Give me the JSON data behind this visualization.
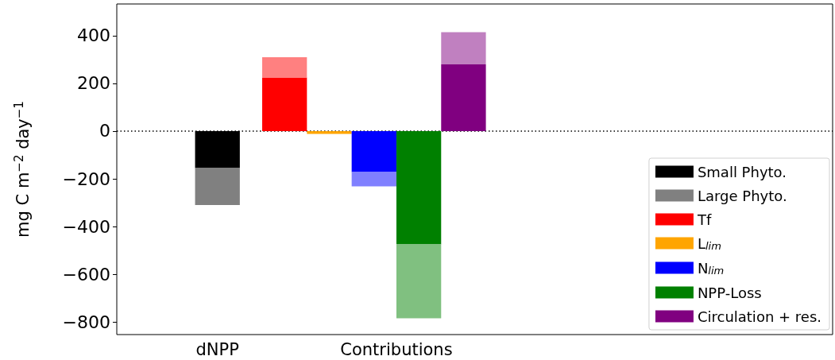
{
  "chart_data": {
    "type": "bar",
    "ylabel": "mg C m$^{−2}$ day$^{−1}$",
    "stacked": true,
    "categories": [
      null,
      null,
      null,
      null,
      "dNPP",
      null,
      null,
      null,
      null,
      null,
      null,
      null,
      "Contributions",
      null,
      null,
      null,
      null,
      null,
      null,
      null,
      null,
      null,
      null,
      null,
      null,
      null,
      null,
      null,
      null,
      null,
      null,
      null
    ],
    "ylim": [
      -853,
      533
    ],
    "yticks": [
      -800,
      -600,
      -400,
      -200,
      0,
      200,
      400
    ],
    "series": [
      {
        "name": "Small Phyto.",
        "color": "#000000",
        "values": [
          null,
          null,
          null,
          null,
          -155,
          null,
          null,
          null,
          null,
          null,
          null,
          null,
          null,
          null,
          null,
          null,
          null,
          null,
          null,
          null,
          null,
          null,
          null,
          null,
          null,
          null,
          null,
          null,
          null,
          null,
          null,
          null
        ]
      },
      {
        "name": "Large Phyto.",
        "color": "#808080",
        "values": [
          null,
          null,
          null,
          null,
          -155,
          null,
          null,
          null,
          null,
          null,
          null,
          null,
          null,
          null,
          null,
          null,
          null,
          null,
          null,
          null,
          null,
          null,
          null,
          null,
          null,
          null,
          null,
          null,
          null,
          null,
          null,
          null
        ]
      },
      {
        "name": "Tf",
        "color": "#ff0000",
        "values": [
          null,
          null,
          null,
          null,
          null,
          null,
          null,
          225,
          null,
          null,
          null,
          null,
          null,
          null,
          null,
          null,
          null,
          null,
          null,
          null,
          null,
          null,
          null,
          null,
          null,
          null,
          null,
          null,
          null,
          null,
          null,
          null
        ]
      },
      {
        "color": "#ff8080",
        "values": [
          null,
          null,
          null,
          null,
          null,
          null,
          null,
          85,
          null,
          null,
          null,
          null,
          null,
          null,
          null,
          null,
          null,
          null,
          null,
          null,
          null,
          null,
          null,
          null,
          null,
          null,
          null,
          null,
          null,
          null,
          null,
          null
        ]
      },
      {
        "name": "L$_{lim}$",
        "color": "#ffa500",
        "values": [
          null,
          null,
          null,
          null,
          null,
          null,
          null,
          null,
          null,
          -12,
          null,
          null,
          null,
          null,
          null,
          null,
          null,
          null,
          null,
          null,
          null,
          null,
          null,
          null,
          null,
          null,
          null,
          null,
          null,
          null,
          null,
          null
        ]
      },
      {
        "name": "N$_{lim}$",
        "color": "#0000ff",
        "values": [
          null,
          null,
          null,
          null,
          null,
          null,
          null,
          null,
          null,
          null,
          null,
          -172,
          null,
          null,
          null,
          null,
          null,
          null,
          null,
          null,
          null,
          null,
          null,
          null,
          null,
          null,
          null,
          null,
          null,
          null,
          null,
          null
        ]
      },
      {
        "color": "#8080ff",
        "values": [
          null,
          null,
          null,
          null,
          null,
          null,
          null,
          null,
          null,
          null,
          null,
          -60,
          null,
          null,
          null,
          null,
          null,
          null,
          null,
          null,
          null,
          null,
          null,
          null,
          null,
          null,
          null,
          null,
          null,
          null,
          null,
          null
        ]
      },
      {
        "name": "NPP-Loss",
        "color": "#008000",
        "values": [
          null,
          null,
          null,
          null,
          null,
          null,
          null,
          null,
          null,
          null,
          null,
          null,
          null,
          -475,
          null,
          null,
          null,
          null,
          null,
          null,
          null,
          null,
          null,
          null,
          null,
          null,
          null,
          null,
          null,
          null,
          null,
          null
        ]
      },
      {
        "color": "#80c080",
        "values": [
          null,
          null,
          null,
          null,
          null,
          null,
          null,
          null,
          null,
          null,
          null,
          null,
          null,
          -310,
          null,
          null,
          null,
          null,
          null,
          null,
          null,
          null,
          null,
          null,
          null,
          null,
          null,
          null,
          null,
          null,
          null,
          null
        ]
      },
      {
        "name": "Circulation + res.",
        "color": "#800080",
        "values": [
          null,
          null,
          null,
          null,
          null,
          null,
          null,
          null,
          null,
          null,
          null,
          null,
          null,
          null,
          null,
          280,
          null,
          null,
          null,
          null,
          null,
          null,
          null,
          null,
          null,
          null,
          null,
          null,
          null,
          null,
          null,
          null
        ]
      },
      {
        "color": "#c080c0",
        "values": [
          null,
          null,
          null,
          null,
          null,
          null,
          null,
          null,
          null,
          null,
          null,
          null,
          null,
          null,
          null,
          135,
          null,
          null,
          null,
          null,
          null,
          null,
          null,
          null,
          null,
          null,
          null,
          null,
          null,
          null,
          null,
          null
        ]
      }
    ],
    "ref_lines": [
      {
        "axis": "y",
        "value": 0,
        "color": "#000000",
        "line_style": "dotted"
      }
    ],
    "legend": "bottom right",
    "grid": false
  }
}
